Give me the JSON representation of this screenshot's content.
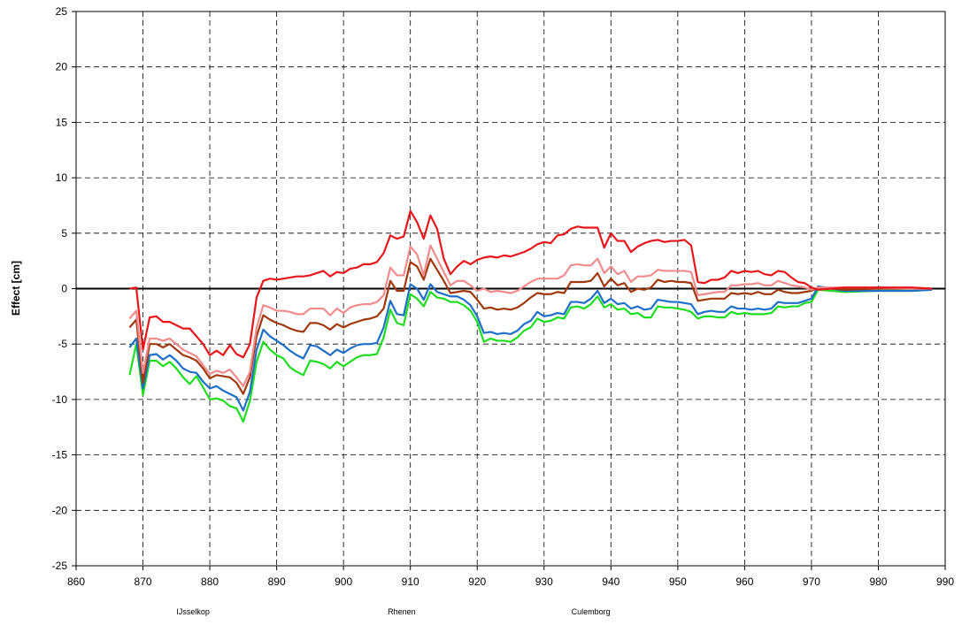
{
  "chart_data": {
    "type": "line",
    "y_label": "Effect [cm]",
    "xlim": [
      860,
      990
    ],
    "xticks": [
      860,
      870,
      880,
      890,
      900,
      910,
      920,
      930,
      940,
      950,
      960,
      970,
      980,
      990
    ],
    "ylim": [
      -25,
      25
    ],
    "yticks": [
      -25,
      -20,
      -15,
      -10,
      -5,
      0,
      5,
      10,
      15,
      20,
      25
    ],
    "grid": true,
    "annotations": [
      {
        "text": "IJsselkop",
        "x": 877.5
      },
      {
        "text": "Rhenen",
        "x": 908.7
      },
      {
        "text": "Culemborg",
        "x": 937
      }
    ],
    "x": [
      868,
      869,
      870,
      871,
      872,
      873,
      874,
      875,
      876,
      877,
      878,
      879,
      880,
      881,
      882,
      883,
      884,
      885,
      886,
      887,
      888,
      889,
      890,
      891,
      892,
      893,
      894,
      895,
      896,
      897,
      898,
      899,
      900,
      901,
      902,
      903,
      904,
      905,
      906,
      907,
      908,
      909,
      910,
      911,
      912,
      913,
      914,
      915,
      916,
      917,
      918,
      919,
      920,
      921,
      922,
      923,
      924,
      925,
      926,
      927,
      928,
      929,
      930,
      931,
      932,
      933,
      934,
      935,
      936,
      937,
      938,
      939,
      940,
      941,
      942,
      943,
      944,
      945,
      946,
      947,
      948,
      949,
      950,
      951,
      952,
      953,
      954,
      955,
      956,
      957,
      958,
      959,
      960,
      961,
      962,
      963,
      964,
      965,
      966,
      967,
      968,
      969,
      970,
      971,
      975,
      980,
      985,
      988
    ],
    "series": [
      {
        "color": "#1edc1e",
        "values": [
          -7.8,
          -5,
          -9.6,
          -6.5,
          -6.5,
          -7,
          -6.6,
          -7.2,
          -8,
          -8.6,
          -7.9,
          -8.9,
          -10,
          -9.9,
          -10.1,
          -10.6,
          -10.8,
          -12,
          -10.1,
          -6.6,
          -4.8,
          -5.5,
          -6,
          -6.3,
          -7.1,
          -7.5,
          -7.8,
          -6.5,
          -6.6,
          -6.8,
          -7.2,
          -6.6,
          -7,
          -6.6,
          -6.2,
          -6,
          -6,
          -5.9,
          -4.4,
          -1.9,
          -3.1,
          -3.3,
          -0.5,
          -0.9,
          -1.6,
          -0.3,
          -0.8,
          -0.9,
          -1.2,
          -1.2,
          -1.5,
          -2,
          -3,
          -4.8,
          -4.5,
          -4.7,
          -4.7,
          -4.8,
          -4.4,
          -3.8,
          -3.5,
          -2.7,
          -3,
          -2.9,
          -2.6,
          -2.7,
          -1.7,
          -1.6,
          -1.8,
          -1.4,
          -0.7,
          -1.7,
          -1.4,
          -1.9,
          -1.8,
          -2.3,
          -2.2,
          -2.6,
          -2.6,
          -1.6,
          -1.7,
          -1.7,
          -1.8,
          -1.9,
          -2.1,
          -2.7,
          -2.5,
          -2.5,
          -2.6,
          -2.6,
          -2.1,
          -2.3,
          -2.2,
          -2.3,
          -2.3,
          -2.3,
          -2.2,
          -1.6,
          -1.7,
          -1.6,
          -1.6,
          -1.3,
          -1.2,
          -0.1,
          -0.3,
          -0.2,
          -0.2,
          -0.1
        ]
      },
      {
        "color": "#1f6fc8",
        "values": [
          -5.3,
          -4.5,
          -9,
          -6,
          -5.9,
          -6.4,
          -6,
          -6.5,
          -7.2,
          -7.5,
          -7.6,
          -8.4,
          -9,
          -8.8,
          -9.2,
          -9.5,
          -9.8,
          -11,
          -9.3,
          -5.5,
          -3.7,
          -4.3,
          -4.7,
          -5.1,
          -5.6,
          -6,
          -6.3,
          -5.1,
          -5.2,
          -5.6,
          -6,
          -5.5,
          -5.8,
          -5.4,
          -5.1,
          -5,
          -5,
          -4.9,
          -3.5,
          -1.1,
          -2.3,
          -2.4,
          0.4,
          0,
          -1,
          0.4,
          -0.3,
          -0.5,
          -0.7,
          -0.7,
          -1,
          -1.5,
          -2.5,
          -4,
          -3.9,
          -4.1,
          -4,
          -4.1,
          -3.8,
          -3.2,
          -2.9,
          -2.1,
          -2.5,
          -2.4,
          -2.2,
          -2.3,
          -1.2,
          -1.2,
          -1.3,
          -0.9,
          -0.2,
          -1.3,
          -0.9,
          -1.4,
          -1.3,
          -1.8,
          -1.6,
          -1.9,
          -1.8,
          -1,
          -1.1,
          -1.2,
          -1.2,
          -1.3,
          -1.4,
          -2.3,
          -2.1,
          -2,
          -2.1,
          -2.1,
          -1.6,
          -1.8,
          -1.8,
          -1.9,
          -1.8,
          -1.9,
          -1.8,
          -1.2,
          -1.3,
          -1.3,
          -1.3,
          -1.1,
          -0.9,
          0.2,
          -0.2,
          -0.2,
          -0.2,
          -0.1
        ]
      },
      {
        "color": "#a0380e",
        "values": [
          -3.5,
          -2.8,
          -8.5,
          -5,
          -5,
          -5.3,
          -5,
          -5.5,
          -6,
          -6.2,
          -6.5,
          -7.2,
          -8.1,
          -7.8,
          -7.9,
          -8,
          -8.5,
          -9.5,
          -8,
          -4.3,
          -2.4,
          -2.8,
          -3.1,
          -3.3,
          -3.6,
          -3.8,
          -3.9,
          -3.1,
          -3.1,
          -3.3,
          -3.7,
          -3.2,
          -3.5,
          -3.2,
          -3,
          -2.8,
          -2.7,
          -2.5,
          -1.8,
          0.7,
          -0.2,
          -0.2,
          2.4,
          2,
          0.8,
          2.7,
          1.7,
          0.7,
          -0.4,
          -0.3,
          -0.2,
          -0.3,
          -1,
          -1.8,
          -1.7,
          -1.9,
          -1.8,
          -1.9,
          -1.7,
          -1.3,
          -0.8,
          -0.4,
          -0.5,
          -0.5,
          -0.3,
          -0.4,
          0.6,
          0.6,
          0.6,
          0.7,
          1.4,
          0.2,
          0.9,
          0.3,
          0.5,
          -0.3,
          0,
          -0.1,
          0.1,
          0.8,
          0.6,
          0.7,
          0.6,
          0.6,
          0.5,
          -1.1,
          -1,
          -0.9,
          -0.9,
          -0.9,
          -0.4,
          -0.5,
          -0.4,
          -0.5,
          -0.3,
          -0.5,
          -0.5,
          -0.1,
          -0.3,
          -0.4,
          -0.4,
          -0.3,
          -0.2,
          0.1,
          -0.1,
          0,
          0,
          0
        ]
      },
      {
        "color": "#f08c8c",
        "values": [
          -2.7,
          -2,
          -7.6,
          -4.5,
          -4.5,
          -4.7,
          -4.5,
          -5,
          -5.5,
          -5.8,
          -6.1,
          -6.9,
          -7.7,
          -7.4,
          -7.6,
          -7.3,
          -8,
          -8.8,
          -7.5,
          -3.5,
          -1.5,
          -1.7,
          -2,
          -2,
          -2.1,
          -2.3,
          -2.3,
          -1.8,
          -1.8,
          -1.8,
          -2.4,
          -1.8,
          -2.2,
          -1.7,
          -1.5,
          -1.4,
          -1.4,
          -1.2,
          -0.6,
          1.9,
          1.2,
          1.2,
          3.8,
          3.1,
          1.2,
          3.9,
          2.7,
          1.5,
          0.3,
          0.7,
          0.7,
          0.3,
          -0.2,
          0,
          -0.3,
          -0.2,
          -0.3,
          -0.4,
          -0.2,
          0.2,
          0.6,
          0.9,
          0.9,
          0.9,
          0.9,
          1.2,
          2.1,
          2.2,
          2.1,
          2.1,
          2.7,
          1.4,
          2,
          1.3,
          1.6,
          0.6,
          1.1,
          1.1,
          1.2,
          1.7,
          1.6,
          1.6,
          1.6,
          1.6,
          1.5,
          -0.6,
          -0.5,
          -0.4,
          -0.3,
          -0.3,
          0.3,
          0.3,
          0.4,
          0.4,
          0.5,
          0.3,
          0.3,
          0.7,
          0.5,
          0.3,
          0.2,
          0.1,
          -0.1,
          0.1,
          0.1,
          0.1,
          0,
          0
        ]
      },
      {
        "color": "#e8161b",
        "values": [
          0,
          0.1,
          -5.5,
          -2.6,
          -2.5,
          -3,
          -3,
          -3.3,
          -3.6,
          -3.6,
          -4.3,
          -5,
          -6,
          -5.6,
          -6,
          -5.1,
          -5.9,
          -6.2,
          -5,
          -0.8,
          0.7,
          0.9,
          0.8,
          0.9,
          1,
          1.1,
          1.1,
          1.2,
          1.4,
          1.6,
          1.1,
          1.5,
          1.4,
          1.8,
          1.9,
          2.2,
          2.2,
          2.4,
          3.2,
          4.8,
          4.5,
          4.7,
          7,
          6,
          4.5,
          6.6,
          5.4,
          2.7,
          1.3,
          2,
          2.5,
          2.2,
          2.6,
          2.8,
          2.9,
          2.8,
          3,
          2.9,
          3.1,
          3.3,
          3.6,
          4,
          4.2,
          4.1,
          4.8,
          4.9,
          5.4,
          5.6,
          5.5,
          5.5,
          5.5,
          3.7,
          5,
          4.3,
          4.3,
          3.3,
          3.8,
          4.1,
          4.3,
          4.4,
          4.2,
          4.3,
          4.3,
          4.4,
          3.9,
          0.6,
          0.5,
          0.8,
          0.8,
          1,
          1.6,
          1.4,
          1.6,
          1.5,
          1.6,
          1.3,
          1.2,
          1.6,
          1.5,
          1,
          0.6,
          0.5,
          0.1,
          -0.1,
          0.1,
          0.1,
          0.1,
          0
        ]
      }
    ]
  }
}
